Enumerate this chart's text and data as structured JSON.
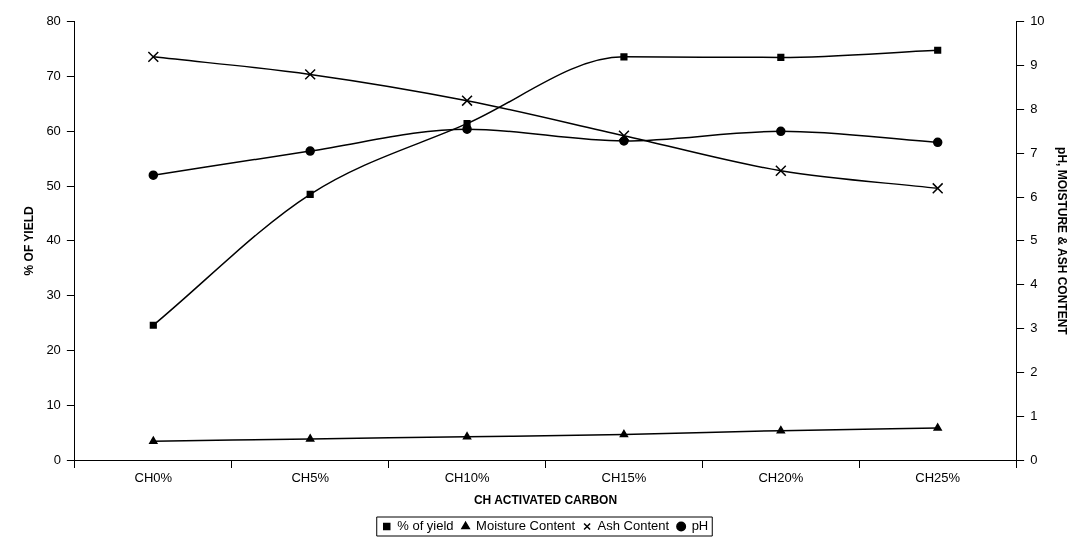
{
  "chart_data": {
    "type": "line",
    "xlabel": "CH ACTIVATED CARBON",
    "ylabel": "% OF YIELD",
    "y2label": "pH, MOISTURE & ASH CONTENT",
    "categories": [
      "CH0%",
      "CH5%",
      "CH10%",
      "CH15%",
      "CH20%",
      "CH25%"
    ],
    "series": [
      {
        "name": "% of yield",
        "color": "#000000",
        "marker": "square",
        "values": [
          24.6,
          48.5,
          61.4,
          73.6,
          73.5,
          74.8
        ]
      },
      {
        "name": "Moisture Content",
        "color": "#000000",
        "marker": "triangle",
        "axis": "y2",
        "values": [
          0.43,
          0.48,
          0.53,
          0.58,
          0.67,
          0.73
        ]
      },
      {
        "name": "Ash Content",
        "color": "#000000",
        "marker": "cross",
        "axis": "y2",
        "values": [
          9.2,
          8.8,
          8.2,
          7.4,
          6.6,
          6.2
        ]
      },
      {
        "name": "pH",
        "color": "#000000",
        "marker": "circle",
        "axis": "y2",
        "values": [
          6.5,
          7.05,
          7.55,
          7.28,
          7.5,
          7.25
        ]
      }
    ],
    "ylim": [
      0,
      80
    ],
    "yticks": [
      0,
      10,
      20,
      30,
      40,
      50,
      60,
      70,
      80
    ],
    "y2lim": [
      0,
      10
    ],
    "y2ticks": [
      0,
      1,
      2,
      3,
      4,
      5,
      6,
      7,
      8,
      9,
      10
    ],
    "grid": false,
    "legend": "bottom"
  }
}
